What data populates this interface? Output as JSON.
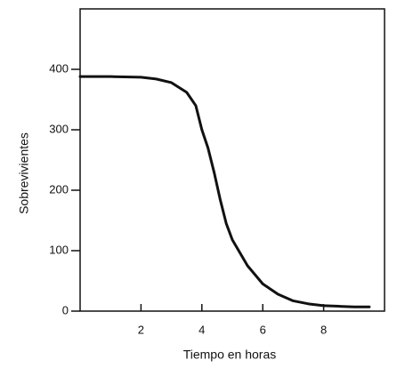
{
  "chart_data": {
    "type": "line",
    "x_label": "Tiempo en horas",
    "y_label": "Sobrevivientes",
    "x": [
      0,
      1,
      2,
      2.5,
      3,
      3.5,
      3.8,
      4,
      4.2,
      4.4,
      4.6,
      4.8,
      5,
      5.5,
      6,
      6.5,
      7,
      7.5,
      8,
      8.5,
      9,
      9.5
    ],
    "series": [
      {
        "name": "Sobrevivientes",
        "color": "#111111",
        "values": [
          388,
          388,
          387,
          384,
          378,
          362,
          340,
          300,
          270,
          230,
          185,
          145,
          118,
          75,
          45,
          28,
          17,
          12,
          9,
          8,
          7,
          7
        ]
      }
    ],
    "xlim": [
      0,
      10
    ],
    "xticks": [
      2,
      4,
      6,
      8
    ],
    "ylim": [
      0,
      500
    ],
    "yticks": [
      0,
      100,
      200,
      300,
      400
    ],
    "grid": false
  }
}
